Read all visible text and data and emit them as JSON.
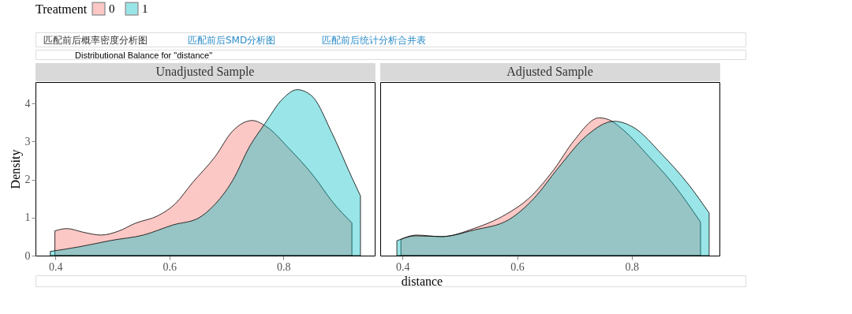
{
  "chart_data": [
    {
      "type": "area",
      "title": "Unadjusted Sample",
      "ylabel": "Density",
      "xlabel": "distance",
      "legend_title": "Treatment",
      "legend": "top",
      "grid": false,
      "annotations": [
        "匹配前后概率密度分析图",
        "匹配前后SMD分析图",
        "匹配前后统计分析合并表",
        "Distributional Balance for \"distance\""
      ],
      "xlim": [
        0.365,
        0.96
      ],
      "xticks": [
        0.4,
        0.6,
        0.8
      ],
      "ylim": [
        0,
        4.56
      ],
      "yticks": [
        0,
        1,
        2,
        3,
        4
      ],
      "series": [
        {
          "name": "0",
          "color": "#f8766d",
          "x": [
            0.399,
            0.42,
            0.45,
            0.48,
            0.51,
            0.54,
            0.58,
            0.61,
            0.64,
            0.68,
            0.71,
            0.745,
            0.77,
            0.81,
            0.855,
            0.885,
            0.92
          ],
          "values": [
            0.65,
            0.71,
            0.61,
            0.54,
            0.64,
            0.85,
            1.05,
            1.36,
            1.91,
            2.6,
            3.26,
            3.55,
            3.39,
            2.81,
            2.05,
            1.43,
            0.86
          ]
        },
        {
          "name": "1",
          "color": "#00bfc4",
          "x": [
            0.391,
            0.441,
            0.498,
            0.554,
            0.607,
            0.65,
            0.676,
            0.711,
            0.741,
            0.767,
            0.798,
            0.824,
            0.85,
            0.885,
            0.92,
            0.935
          ],
          "values": [
            0.11,
            0.23,
            0.4,
            0.54,
            0.81,
            0.98,
            1.29,
            1.98,
            2.88,
            3.46,
            4.11,
            4.36,
            4.19,
            3.22,
            2.05,
            1.57
          ]
        }
      ]
    },
    {
      "type": "area",
      "title": "Adjusted Sample",
      "tick_labels": "x",
      "grid": false,
      "xlim": [
        0.361,
        0.953
      ],
      "xticks": [
        0.4,
        0.6,
        0.8
      ],
      "ylim": [
        0,
        4.56
      ],
      "yticks": [
        0,
        1,
        2,
        3,
        4
      ],
      "series": [
        {
          "name": "0",
          "color": "#f8766d",
          "x": [
            0.397,
            0.424,
            0.468,
            0.524,
            0.581,
            0.62,
            0.664,
            0.699,
            0.743,
            0.76,
            0.786,
            0.83,
            0.874,
            0.92
          ],
          "values": [
            0.43,
            0.54,
            0.5,
            0.71,
            1.09,
            1.5,
            2.26,
            3.02,
            3.62,
            3.57,
            3.29,
            2.6,
            1.85,
            0.88
          ]
        },
        {
          "name": "1",
          "color": "#00bfc4",
          "x": [
            0.39,
            0.424,
            0.468,
            0.524,
            0.586,
            0.629,
            0.673,
            0.721,
            0.769,
            0.804,
            0.852,
            0.9,
            0.935
          ],
          "values": [
            0.39,
            0.52,
            0.5,
            0.67,
            0.95,
            1.5,
            2.33,
            3.15,
            3.53,
            3.36,
            2.67,
            1.85,
            1.12
          ]
        }
      ]
    }
  ]
}
